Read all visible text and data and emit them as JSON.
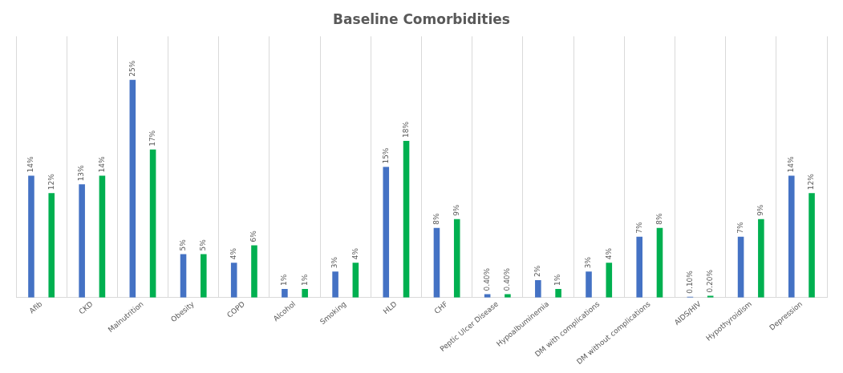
{
  "chart_data": {
    "type": "bar",
    "title": "Baseline Comorbidities",
    "categories": [
      "Afib",
      "CKD",
      "Malnutrition",
      "Obesity",
      "COPD",
      "Alcohol",
      "Smoking",
      "HLD",
      "CHF",
      "Peptic Ulcer Disease",
      "Hypoalbuminemia",
      "DM with complications",
      "DM without complications",
      "AIDS/HIV",
      "Hypothyroidism",
      "Depression"
    ],
    "series": [
      {
        "color": "#4472c4",
        "values": [
          14,
          13,
          25,
          5,
          4,
          1,
          3,
          15,
          8,
          0.4,
          2,
          3,
          7,
          0.1,
          7,
          14
        ],
        "value_labels": [
          "14%",
          "13%",
          "25%",
          "5%",
          "4%",
          "1%",
          "3%",
          "15%",
          "8%",
          "0.40%",
          "2%",
          "3%",
          "7%",
          "0.10%",
          "7%",
          "14%"
        ]
      },
      {
        "color": "#00b050",
        "values": [
          12,
          14,
          17,
          5,
          6,
          1,
          4,
          18,
          9,
          0.4,
          1,
          4,
          8,
          0.2,
          9,
          12
        ],
        "value_labels": [
          "12%",
          "14%",
          "17%",
          "5%",
          "6%",
          "1%",
          "4%",
          "18%",
          "9%",
          "0.40%",
          "1%",
          "4%",
          "8%",
          "0.20%",
          "9%",
          "12%"
        ]
      }
    ],
    "grid": "x",
    "legend": false,
    "tick_labels": "x"
  }
}
